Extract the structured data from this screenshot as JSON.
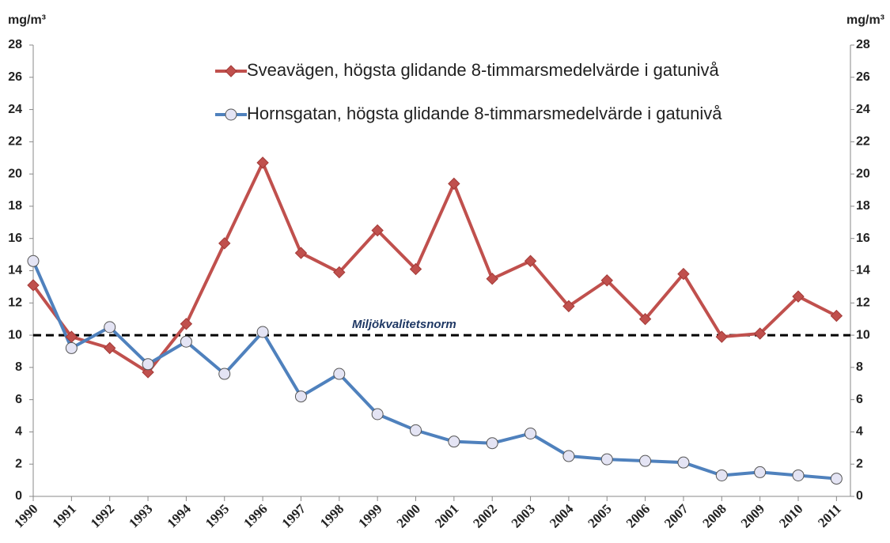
{
  "chart_data": {
    "type": "line",
    "y_label": "mg/m³",
    "y2_label": "mg/m³",
    "categories": [
      "1990",
      "1991",
      "1992",
      "1993",
      "1994",
      "1995",
      "1996",
      "1997",
      "1998",
      "1999",
      "2000",
      "2001",
      "2002",
      "2003",
      "2004",
      "2005",
      "2006",
      "2007",
      "2008",
      "2009",
      "2010",
      "2011"
    ],
    "series": [
      {
        "name": "Sveavägen, högsta glidande 8-timmarsmedelvärde i gatunivå",
        "color": "#c0504d",
        "marker": "diamond",
        "values": [
          13.1,
          9.9,
          9.2,
          7.7,
          10.7,
          15.7,
          20.7,
          15.1,
          13.9,
          16.5,
          14.1,
          19.4,
          13.5,
          14.6,
          11.8,
          13.4,
          11.0,
          13.8,
          9.9,
          10.1,
          12.4,
          11.2
        ]
      },
      {
        "name": "Hornsgatan, högsta glidande 8-timmarsmedelvärde i gatunivå",
        "color": "#4f81bd",
        "marker": "circle",
        "values": [
          14.6,
          9.2,
          10.5,
          8.2,
          9.6,
          7.6,
          10.2,
          6.2,
          7.6,
          5.1,
          4.1,
          3.4,
          3.3,
          3.9,
          2.5,
          2.3,
          2.2,
          2.1,
          1.3,
          1.5,
          1.3,
          1.1
        ]
      }
    ],
    "reference_line": {
      "value": 10,
      "label": "Miljökvalitetsnorm"
    },
    "ylim": [
      0,
      28
    ],
    "yticks": [
      0,
      2,
      4,
      6,
      8,
      10,
      12,
      14,
      16,
      18,
      20,
      22,
      24,
      26,
      28
    ],
    "y2lim": [
      0,
      28
    ],
    "y2ticks": [
      0,
      2,
      4,
      6,
      8,
      10,
      12,
      14,
      16,
      18,
      20,
      22,
      24,
      26,
      28
    ],
    "grid": false
  }
}
